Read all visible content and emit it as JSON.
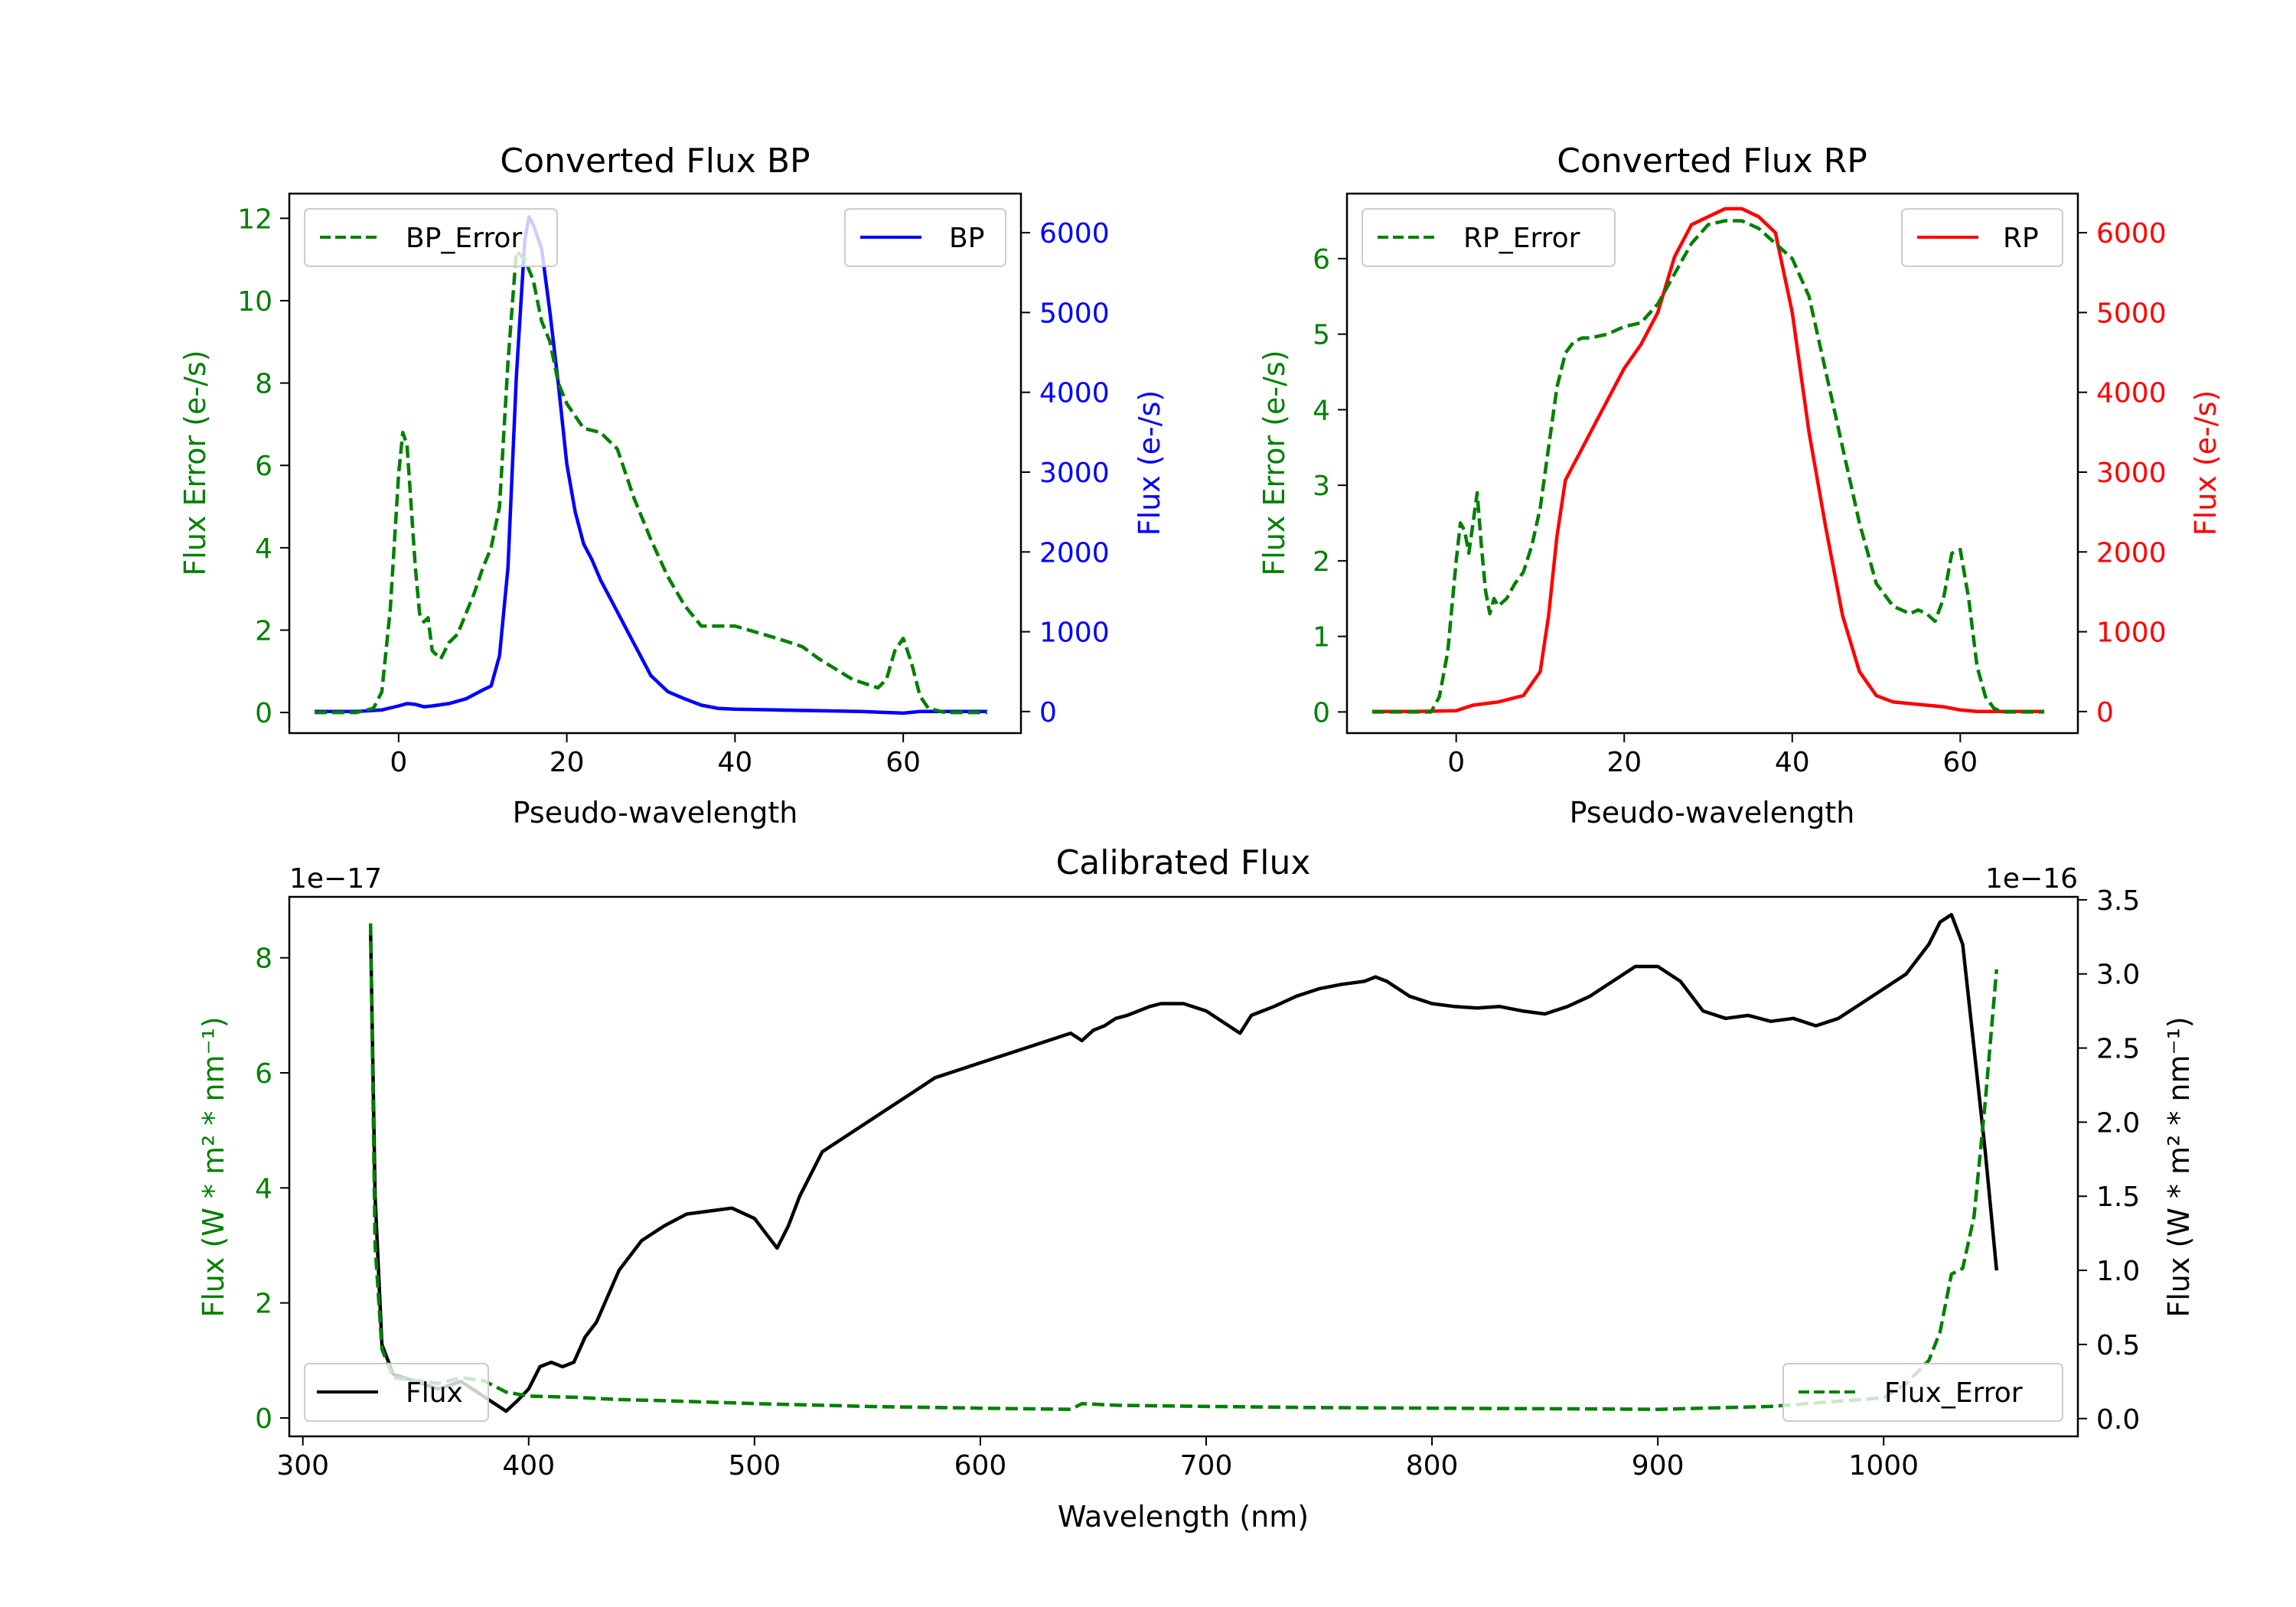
{
  "colors": {
    "bp": "#0000ff",
    "rp": "#ff0000",
    "err": "#008000",
    "flux": "#000000"
  },
  "chart_data": [
    {
      "id": "bp",
      "type": "line",
      "title": "Converted Flux BP",
      "xlabel": "Pseudo-wavelength",
      "ylabel_left": "Flux Error (e-/s)",
      "ylabel_right": "Flux (e-/s)",
      "xlim": [
        -13,
        74
      ],
      "ylim_left": [
        -0.5,
        12.6
      ],
      "ylim_right": [
        -270,
        6490
      ],
      "xticks": [
        0,
        20,
        40,
        60
      ],
      "yticks_left": [
        0,
        2,
        4,
        6,
        8,
        10,
        12
      ],
      "yticks_right": [
        0,
        1000,
        2000,
        3000,
        4000,
        5000,
        6000
      ],
      "legend_left": "BP_Error",
      "legend_right": "BP",
      "series": [
        {
          "name": "BP",
          "axis": "right",
          "style": "solid",
          "color_key": "bp",
          "x": [
            -10,
            -5,
            -2,
            0,
            1,
            2,
            3,
            4,
            6,
            8,
            10,
            11,
            12,
            13,
            14,
            15,
            15.5,
            16,
            17,
            18,
            19,
            20,
            21,
            22,
            23,
            24,
            25,
            26,
            27,
            28,
            30,
            32,
            34,
            36,
            38,
            40,
            45,
            50,
            55,
            60,
            62,
            65,
            70
          ],
          "y": [
            0,
            0,
            20,
            70,
            100,
            90,
            60,
            70,
            100,
            160,
            270,
            320,
            700,
            1800,
            4200,
            5900,
            6200,
            6100,
            5800,
            5000,
            4100,
            3100,
            2500,
            2100,
            1900,
            1650,
            1450,
            1250,
            1050,
            850,
            450,
            250,
            160,
            80,
            40,
            30,
            20,
            10,
            0,
            -20,
            0,
            0,
            0
          ]
        },
        {
          "name": "BP_Error",
          "axis": "left",
          "style": "dashed",
          "color_key": "err",
          "x": [
            -10,
            -5,
            -3,
            -2,
            -1,
            0,
            0.5,
            1,
            1.5,
            2,
            2.5,
            3,
            3.5,
            4,
            5,
            6,
            7,
            8,
            9,
            10,
            11,
            12,
            13,
            14,
            15,
            16,
            17,
            18,
            19,
            20,
            22,
            24,
            26,
            28,
            30,
            32,
            34,
            36,
            38,
            40,
            45,
            48,
            50,
            54,
            57,
            58,
            59,
            60,
            61,
            62,
            63,
            65,
            70
          ],
          "y": [
            0,
            0,
            0.1,
            0.5,
            2.5,
            5.8,
            6.8,
            6.5,
            5,
            3.5,
            2.4,
            2.2,
            2.3,
            1.5,
            1.3,
            1.7,
            1.9,
            2.4,
            2.9,
            3.5,
            4,
            5,
            8.5,
            11.2,
            11,
            10.5,
            9.5,
            9,
            8,
            7.5,
            6.9,
            6.8,
            6.4,
            5.2,
            4.2,
            3.3,
            2.6,
            2.1,
            2.1,
            2.1,
            1.8,
            1.6,
            1.3,
            0.8,
            0.6,
            0.8,
            1.5,
            1.8,
            1.2,
            0.4,
            0.1,
            0,
            0
          ]
        }
      ]
    },
    {
      "id": "rp",
      "type": "line",
      "title": "Converted Flux RP",
      "xlabel": "Pseudo-wavelength",
      "ylabel_left": "Flux Error (e-/s)",
      "ylabel_right": "Flux (e-/s)",
      "xlim": [
        -13,
        74
      ],
      "ylim_left": [
        -0.28,
        6.86
      ],
      "ylim_right": [
        -270,
        6490
      ],
      "xticks": [
        0,
        20,
        40,
        60
      ],
      "yticks_left": [
        0,
        1,
        2,
        3,
        4,
        5,
        6
      ],
      "yticks_right": [
        0,
        1000,
        2000,
        3000,
        4000,
        5000,
        6000
      ],
      "legend_left": "RP_Error",
      "legend_right": "RP",
      "series": [
        {
          "name": "RP",
          "axis": "right",
          "style": "solid",
          "color_key": "rp",
          "x": [
            -10,
            -5,
            0,
            2,
            5,
            8,
            10,
            11,
            12,
            13,
            14,
            15,
            16,
            18,
            20,
            22,
            24,
            26,
            28,
            30,
            32,
            34,
            36,
            38,
            40,
            42,
            44,
            46,
            48,
            50,
            52,
            55,
            58,
            60,
            62,
            65,
            70
          ],
          "y": [
            0,
            0,
            10,
            80,
            120,
            200,
            500,
            1200,
            2200,
            2900,
            3100,
            3300,
            3500,
            3900,
            4300,
            4600,
            5000,
            5700,
            6100,
            6200,
            6300,
            6300,
            6200,
            6000,
            5000,
            3500,
            2300,
            1200,
            500,
            200,
            120,
            90,
            60,
            20,
            0,
            0,
            0
          ]
        },
        {
          "name": "RP_Error",
          "axis": "left",
          "style": "dashed",
          "color_key": "err",
          "x": [
            -10,
            -5,
            -3,
            -2,
            -1,
            0,
            0.5,
            1,
            1.5,
            2,
            2.5,
            3,
            3.5,
            4,
            4.5,
            5,
            6,
            7,
            8,
            9,
            10,
            11,
            12,
            13,
            14,
            15,
            16,
            18,
            20,
            22,
            24,
            26,
            28,
            30,
            32,
            34,
            36,
            38,
            40,
            42,
            44,
            46,
            48,
            50,
            52,
            54,
            55,
            56,
            57,
            58,
            59,
            60,
            61,
            62,
            63,
            64,
            65,
            70
          ],
          "y": [
            0,
            0,
            0,
            0.2,
            0.8,
            2,
            2.5,
            2.4,
            2.1,
            2.5,
            2.9,
            2.2,
            1.6,
            1.3,
            1.5,
            1.4,
            1.5,
            1.7,
            1.85,
            2.2,
            2.7,
            3.5,
            4.3,
            4.75,
            4.9,
            4.95,
            4.95,
            5.0,
            5.1,
            5.15,
            5.4,
            5.8,
            6.2,
            6.45,
            6.5,
            6.5,
            6.4,
            6.2,
            6.0,
            5.5,
            4.5,
            3.5,
            2.5,
            1.7,
            1.4,
            1.3,
            1.35,
            1.3,
            1.2,
            1.5,
            2.1,
            2.15,
            1.5,
            0.6,
            0.2,
            0.05,
            0,
            0
          ]
        }
      ]
    },
    {
      "id": "cal",
      "type": "line",
      "title": "Calibrated Flux",
      "xlabel": "Wavelength (nm)",
      "ylabel_left": "Flux (W * m² * nm⁻¹)",
      "ylabel_right": "Flux (W * m² * nm⁻¹)",
      "offset_left": "1e−17",
      "offset_right": "1e−16",
      "xlim": [
        294,
        1086
      ],
      "ylim_left": [
        -0.32,
        9.06
      ],
      "ylim_right": [
        -0.12,
        3.52
      ],
      "xticks": [
        300,
        400,
        500,
        600,
        700,
        800,
        900,
        1000
      ],
      "yticks_left": [
        0,
        2,
        4,
        6,
        8
      ],
      "yticks_right": [
        0.0,
        0.5,
        1.0,
        1.5,
        2.0,
        2.5,
        3.0,
        3.5
      ],
      "ytick_labels_right": [
        "0.0",
        "0.5",
        "1.0",
        "1.5",
        "2.0",
        "2.5",
        "3.0",
        "3.5"
      ],
      "legend_left": "Flux",
      "legend_right": "Flux_Error",
      "series": [
        {
          "name": "Flux",
          "axis": "right",
          "style": "solid",
          "color_key": "flux",
          "x": [
            330,
            332,
            335,
            340,
            350,
            360,
            370,
            380,
            385,
            390,
            395,
            400,
            405,
            410,
            415,
            420,
            425,
            430,
            440,
            450,
            460,
            470,
            480,
            490,
            500,
            505,
            510,
            515,
            520,
            530,
            540,
            550,
            560,
            570,
            580,
            590,
            600,
            610,
            620,
            630,
            640,
            645,
            650,
            655,
            660,
            665,
            670,
            675,
            680,
            690,
            700,
            710,
            715,
            720,
            730,
            740,
            750,
            760,
            770,
            775,
            780,
            790,
            800,
            810,
            820,
            830,
            840,
            850,
            860,
            870,
            880,
            890,
            900,
            910,
            920,
            930,
            940,
            950,
            960,
            970,
            980,
            990,
            1000,
            1010,
            1020,
            1025,
            1030,
            1035,
            1040,
            1045,
            1050
          ],
          "y": [
            3.3,
            1.5,
            0.5,
            0.3,
            0.25,
            0.2,
            0.25,
            0.15,
            0.1,
            0.05,
            0.12,
            0.2,
            0.35,
            0.38,
            0.35,
            0.38,
            0.55,
            0.65,
            1.0,
            1.2,
            1.3,
            1.38,
            1.4,
            1.42,
            1.35,
            1.25,
            1.15,
            1.3,
            1.5,
            1.8,
            1.9,
            2.0,
            2.1,
            2.2,
            2.3,
            2.35,
            2.4,
            2.45,
            2.5,
            2.55,
            2.6,
            2.55,
            2.62,
            2.65,
            2.7,
            2.72,
            2.75,
            2.78,
            2.8,
            2.8,
            2.75,
            2.65,
            2.6,
            2.72,
            2.78,
            2.85,
            2.9,
            2.93,
            2.95,
            2.98,
            2.95,
            2.85,
            2.8,
            2.78,
            2.77,
            2.78,
            2.75,
            2.73,
            2.78,
            2.85,
            2.95,
            3.05,
            3.05,
            2.95,
            2.75,
            2.7,
            2.72,
            2.68,
            2.7,
            2.65,
            2.7,
            2.8,
            2.9,
            3.0,
            3.2,
            3.35,
            3.4,
            3.2,
            2.5,
            1.8,
            1.0
          ]
        },
        {
          "name": "Flux_Error",
          "axis": "left",
          "style": "dashed",
          "color_key": "err",
          "x": [
            330,
            332,
            335,
            340,
            350,
            360,
            370,
            380,
            390,
            400,
            420,
            440,
            460,
            500,
            550,
            600,
            640,
            645,
            660,
            700,
            750,
            800,
            850,
            900,
            950,
            1000,
            1010,
            1020,
            1025,
            1030,
            1035,
            1040,
            1045,
            1050
          ],
          "y": [
            8.6,
            3,
            1.2,
            0.7,
            0.65,
            0.6,
            0.7,
            0.65,
            0.45,
            0.38,
            0.36,
            0.32,
            0.3,
            0.25,
            0.2,
            0.17,
            0.15,
            0.25,
            0.22,
            0.2,
            0.18,
            0.17,
            0.16,
            0.15,
            0.2,
            0.35,
            0.6,
            1.0,
            1.5,
            2.5,
            2.6,
            3.5,
            5.5,
            7.8
          ]
        }
      ]
    }
  ]
}
